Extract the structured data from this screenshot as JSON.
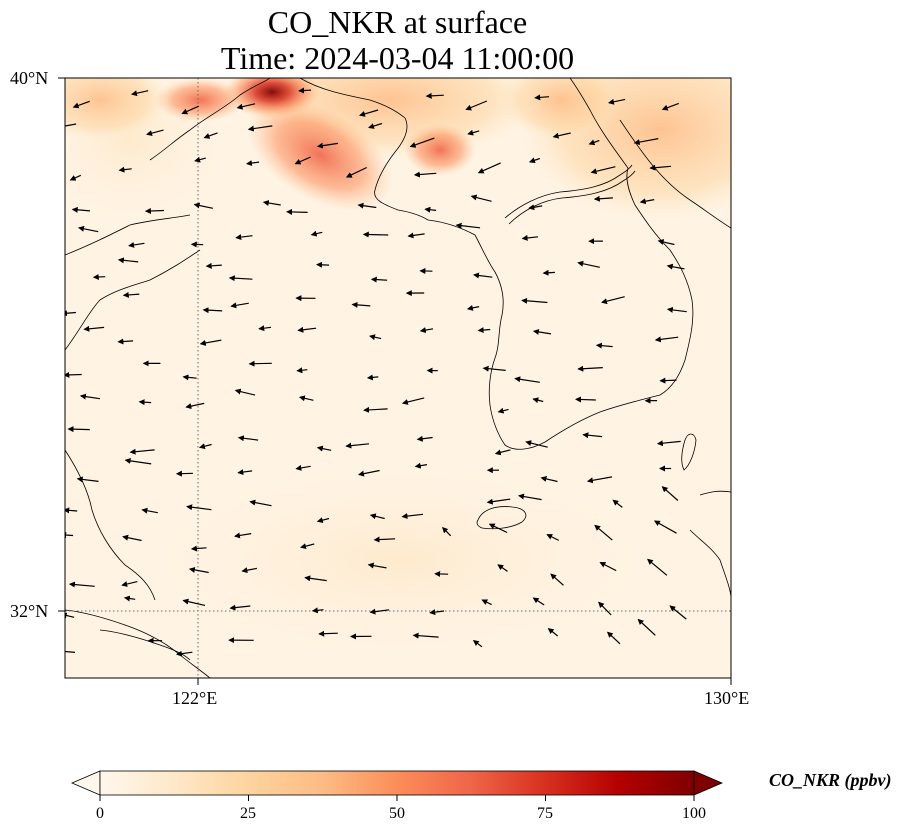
{
  "title": {
    "line1": "CO_NKR at surface",
    "line2": "Time: 2024-03-04 11:00:00"
  },
  "map": {
    "variable": "CO_NKR",
    "level": "surface",
    "lat_labels": [
      "40°N",
      "32°N"
    ],
    "lon_labels": [
      "122°E",
      "130°E"
    ],
    "gridlines": "dotted",
    "coastlines": true,
    "wind_vectors": true,
    "colormap": "OrRd"
  },
  "colorbar": {
    "label": "CO_NKR (ppbv)",
    "ticks": [
      "0",
      "25",
      "50",
      "75",
      "100"
    ],
    "min": 0,
    "max": 100,
    "extend": "both",
    "colors": [
      "#fff7ec",
      "#fee8c8",
      "#fdd49e",
      "#fdbb84",
      "#fc8d59",
      "#ef6548",
      "#d7301f",
      "#b30000",
      "#7f0000"
    ]
  }
}
